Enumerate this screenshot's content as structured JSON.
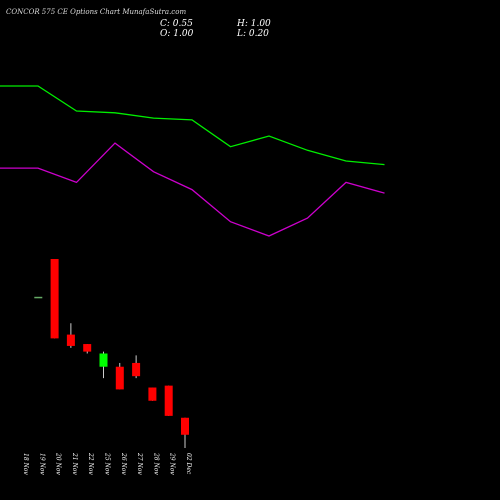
{
  "header": {
    "title": "CONCOR 575 CE Options  Chart MunafaSutra.com",
    "close": "C: 0.55",
    "high": "H: 1.00",
    "open": "O: 1.00",
    "low": "L: 0.20"
  },
  "colors": {
    "background": "#000000",
    "up": "#00ff00",
    "down": "#ff0000",
    "wick": "#ffffff",
    "line_green": "#00ee00",
    "line_magenta": "#cc00cc",
    "axis_text": "#ffffff"
  },
  "chart_data": {
    "type": "candlestick",
    "title": "CONCOR 575 CE Options  Chart MunafaSutra.com",
    "categories": [
      "18 Nov",
      "19 Nov",
      "20 Nov",
      "21 Nov",
      "22 Nov",
      "25 Nov",
      "26 Nov",
      "27 Nov",
      "28 Nov",
      "29 Nov",
      "02 Dec"
    ],
    "ohlc": [
      {
        "o": null,
        "h": null,
        "l": null,
        "c": null
      },
      {
        "o": 4.2,
        "h": 4.2,
        "l": 4.2,
        "c": 4.2
      },
      {
        "o": 5.2,
        "h": 5.2,
        "l": 3.1,
        "c": 3.1
      },
      {
        "o": 3.2,
        "h": 3.5,
        "l": 2.85,
        "c": 2.9
      },
      {
        "o": 2.95,
        "h": 2.95,
        "l": 2.7,
        "c": 2.75
      },
      {
        "o": 2.35,
        "h": 2.75,
        "l": 2.05,
        "c": 2.7
      },
      {
        "o": 2.35,
        "h": 2.45,
        "l": 1.75,
        "c": 1.75
      },
      {
        "o": 2.45,
        "h": 2.65,
        "l": 2.05,
        "c": 2.1
      },
      {
        "o": 1.8,
        "h": 1.8,
        "l": 1.45,
        "c": 1.45
      },
      {
        "o": 1.85,
        "h": 1.85,
        "l": 1.05,
        "c": 1.05
      },
      {
        "o": 1.0,
        "h": 1.0,
        "l": 0.2,
        "c": 0.55
      }
    ],
    "series": [
      {
        "color": "green",
        "values": [
          9.3,
          9.3,
          8.6,
          8.55,
          8.4,
          8.35,
          7.6,
          7.9,
          7.5,
          7.2,
          7.1
        ]
      },
      {
        "color": "magenta",
        "values": [
          7.0,
          7.0,
          6.6,
          7.7,
          6.9,
          6.4,
          5.5,
          5.1,
          5.6,
          6.6,
          6.3
        ]
      }
    ],
    "ylim": [
      0.2,
      9.3
    ],
    "xlabel": "",
    "ylabel": "",
    "grid": false
  }
}
